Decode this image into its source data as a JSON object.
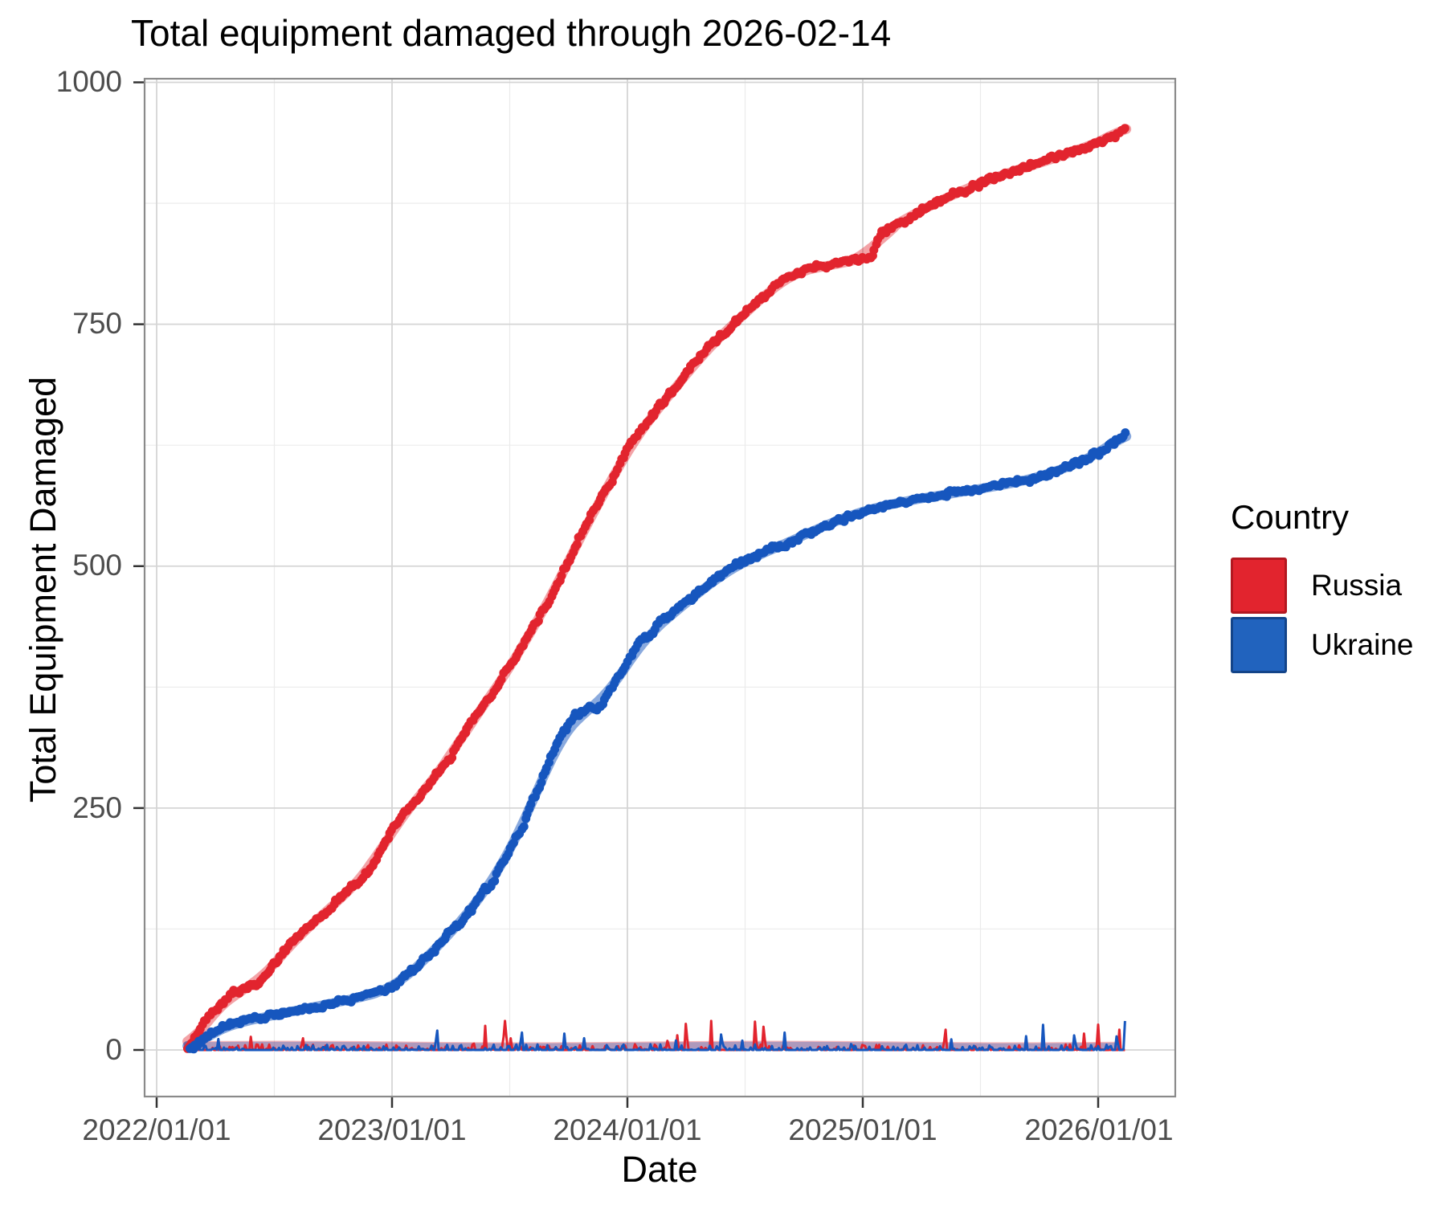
{
  "title": "Total equipment damaged through 2026-02-14",
  "axes": {
    "x_title": "Date",
    "y_title": "Total Equipment Damaged",
    "x_ticks": [
      "2022/01/01",
      "2023/01/01",
      "2024/01/01",
      "2025/01/01",
      "2026/01/01"
    ],
    "y_ticks": [
      "1000",
      "750",
      "500",
      "250",
      "0"
    ]
  },
  "legend": {
    "title": "Country",
    "items": [
      {
        "label": "Russia",
        "color": "#E2242E",
        "border": "#B31820"
      },
      {
        "label": "Ukraine",
        "color": "#2163BE",
        "border": "#134489"
      }
    ]
  },
  "colors": {
    "grid_major": "#D5D5D5",
    "grid_minor": "#EBEBEB",
    "panel_border": "#8A8A8A",
    "tick_mark": "#333333",
    "tick_text": "#4d4d4d"
  },
  "chart_data": {
    "type": "line",
    "title": "Total equipment damaged through 2026-02-14",
    "xlabel": "Date",
    "ylabel": "Total Equipment Damaged",
    "x_tick_years": [
      2022,
      2023,
      2024,
      2025,
      2026
    ],
    "y_major_ticks": [
      0,
      250,
      500,
      750,
      1000
    ],
    "ylim": [
      0,
      1000
    ],
    "x_range_years": [
      2022.13,
      2026.12
    ],
    "grid": true,
    "legend_position": "right",
    "series": [
      {
        "name": "Russia",
        "color": "#E2242E",
        "trend_opacity": 0.42,
        "points": [
          [
            2022.13,
            0
          ],
          [
            2022.16,
            10
          ],
          [
            2022.2,
            25
          ],
          [
            2022.24,
            38
          ],
          [
            2022.28,
            48
          ],
          [
            2022.32,
            58
          ],
          [
            2022.38,
            64
          ],
          [
            2022.42,
            66
          ],
          [
            2022.47,
            80
          ],
          [
            2022.52,
            95
          ],
          [
            2022.58,
            112
          ],
          [
            2022.65,
            128
          ],
          [
            2022.72,
            143
          ],
          [
            2022.79,
            158
          ],
          [
            2022.85,
            172
          ],
          [
            2022.92,
            192
          ],
          [
            2023.0,
            228
          ],
          [
            2023.08,
            252
          ],
          [
            2023.17,
            278
          ],
          [
            2023.25,
            303
          ],
          [
            2023.33,
            338
          ],
          [
            2023.42,
            365
          ],
          [
            2023.5,
            395
          ],
          [
            2023.58,
            428
          ],
          [
            2023.67,
            465
          ],
          [
            2023.75,
            505
          ],
          [
            2023.83,
            545
          ],
          [
            2023.92,
            583
          ],
          [
            2024.0,
            620
          ],
          [
            2024.08,
            648
          ],
          [
            2024.17,
            674
          ],
          [
            2024.25,
            698
          ],
          [
            2024.33,
            722
          ],
          [
            2024.42,
            743
          ],
          [
            2024.5,
            762
          ],
          [
            2024.58,
            778
          ],
          [
            2024.63,
            790
          ],
          [
            2024.68,
            800
          ],
          [
            2024.75,
            806
          ],
          [
            2024.83,
            810
          ],
          [
            2024.92,
            813
          ],
          [
            2025.0,
            818
          ],
          [
            2025.04,
            820
          ],
          [
            2025.07,
            843
          ],
          [
            2025.12,
            850
          ],
          [
            2025.2,
            862
          ],
          [
            2025.3,
            874
          ],
          [
            2025.4,
            886
          ],
          [
            2025.5,
            896
          ],
          [
            2025.6,
            905
          ],
          [
            2025.7,
            913
          ],
          [
            2025.8,
            920
          ],
          [
            2025.9,
            929
          ],
          [
            2026.0,
            938
          ],
          [
            2026.06,
            944
          ],
          [
            2026.1,
            950
          ],
          [
            2026.12,
            957
          ]
        ]
      },
      {
        "name": "Ukraine",
        "color": "#1656BE",
        "trend_opacity": 0.5,
        "points": [
          [
            2022.14,
            0
          ],
          [
            2022.18,
            8
          ],
          [
            2022.22,
            16
          ],
          [
            2022.27,
            22
          ],
          [
            2022.33,
            27
          ],
          [
            2022.4,
            31
          ],
          [
            2022.5,
            36
          ],
          [
            2022.6,
            41
          ],
          [
            2022.7,
            46
          ],
          [
            2022.8,
            51
          ],
          [
            2022.9,
            56
          ],
          [
            2023.0,
            63
          ],
          [
            2023.08,
            80
          ],
          [
            2023.17,
            100
          ],
          [
            2023.25,
            122
          ],
          [
            2023.33,
            143
          ],
          [
            2023.42,
            172
          ],
          [
            2023.5,
            205
          ],
          [
            2023.56,
            235
          ],
          [
            2023.62,
            268
          ],
          [
            2023.67,
            300
          ],
          [
            2023.72,
            325
          ],
          [
            2023.77,
            342
          ],
          [
            2023.83,
            352
          ],
          [
            2023.89,
            357
          ],
          [
            2023.94,
            375
          ],
          [
            2024.0,
            400
          ],
          [
            2024.06,
            422
          ],
          [
            2024.12,
            436
          ],
          [
            2024.2,
            452
          ],
          [
            2024.28,
            468
          ],
          [
            2024.36,
            484
          ],
          [
            2024.44,
            497
          ],
          [
            2024.5,
            505
          ],
          [
            2024.58,
            514
          ],
          [
            2024.67,
            523
          ],
          [
            2024.75,
            532
          ],
          [
            2024.83,
            541
          ],
          [
            2024.92,
            550
          ],
          [
            2025.0,
            557
          ],
          [
            2025.1,
            563
          ],
          [
            2025.2,
            568
          ],
          [
            2025.3,
            572
          ],
          [
            2025.4,
            576
          ],
          [
            2025.5,
            580
          ],
          [
            2025.6,
            584
          ],
          [
            2025.7,
            589
          ],
          [
            2025.8,
            596
          ],
          [
            2025.9,
            605
          ],
          [
            2026.0,
            616
          ],
          [
            2026.06,
            626
          ],
          [
            2026.1,
            633
          ],
          [
            2026.12,
            640
          ]
        ]
      }
    ],
    "daily_series": [
      {
        "name": "Russia daily",
        "color": "#E2242E",
        "typical_max": 10,
        "trend_value": 5,
        "notable_spikes": [
          [
            2022.62,
            12
          ],
          [
            2023.48,
            30
          ],
          [
            2024.25,
            27
          ],
          [
            2024.58,
            24
          ],
          [
            2025.35,
            21
          ]
        ]
      },
      {
        "name": "Ukraine daily",
        "color": "#1656BE",
        "typical_max": 10,
        "trend_value": 4,
        "notable_spikes": [
          [
            2023.19,
            20
          ],
          [
            2023.55,
            18
          ],
          [
            2024.4,
            16
          ],
          [
            2025.9,
            15
          ],
          [
            2026.08,
            14
          ]
        ]
      }
    ]
  }
}
